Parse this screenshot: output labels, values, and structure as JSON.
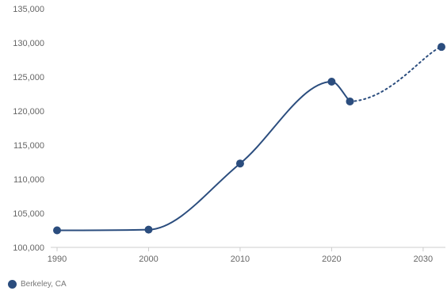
{
  "chart_data": {
    "type": "line",
    "x": [
      1990,
      2000,
      2010,
      2020,
      2022,
      2032
    ],
    "series": [
      {
        "name": "Berkeley, CA",
        "values": [
          102500,
          102600,
          112300,
          124300,
          121400,
          129400
        ],
        "projected_from_index": 4
      }
    ],
    "xlim": [
      1990,
      2032
    ],
    "ylim": [
      100000,
      135000
    ],
    "x_ticks": [
      1990,
      2000,
      2010,
      2020,
      2030
    ],
    "y_ticks": [
      100000,
      105000,
      110000,
      115000,
      120000,
      125000,
      130000,
      135000
    ],
    "x_tick_labels": [
      "1990",
      "2000",
      "2010",
      "2020",
      "2030"
    ],
    "y_tick_labels": [
      "100,000",
      "105,000",
      "110,000",
      "115,000",
      "120,000",
      "125,000",
      "130,000",
      "135,000"
    ],
    "grid": false,
    "legend_position": "bottom-left",
    "colors": {
      "series": "#2b4d7e",
      "axis": "#cccccc",
      "text": "#666666"
    }
  }
}
